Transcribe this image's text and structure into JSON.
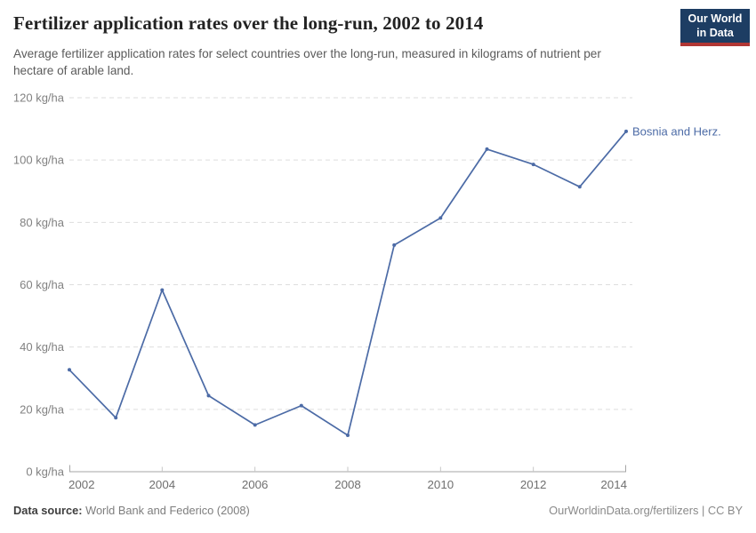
{
  "header": {
    "title": "Fertilizer application rates over the long-run, 2002 to 2014",
    "subtitle_lines": [
      "Average fertilizer application rates for select countries over the long-run, measured in kilograms of nutrient per",
      "hectare of arable land."
    ],
    "logo": {
      "line1": "Our World",
      "line2": "in Data"
    }
  },
  "chart_data": {
    "type": "line",
    "x": [
      2002,
      2003,
      2004,
      2005,
      2006,
      2007,
      2008,
      2009,
      2010,
      2011,
      2012,
      2013,
      2014
    ],
    "series": [
      {
        "name": "Bosnia and Herz.",
        "values": [
          32.7,
          17.3,
          58.3,
          24.4,
          15.0,
          21.2,
          11.7,
          72.7,
          81.4,
          103.5,
          98.6,
          91.4,
          109.2
        ],
        "color": "#4c6ba6"
      }
    ],
    "title": "Fertilizer application rates over the long-run, 2002 to 2014",
    "xlabel": "",
    "ylabel": "kg/ha",
    "unit": "kg/ha",
    "ylim": [
      0,
      120
    ],
    "yticks": [
      0,
      20,
      40,
      60,
      80,
      100,
      120
    ],
    "xticks": [
      2002,
      2004,
      2006,
      2008,
      2010,
      2012,
      2014
    ],
    "grid": "horizontal-dashed",
    "legend_position": "end-of-line-label"
  },
  "footer": {
    "source_label": "Data source:",
    "source_value": "World Bank and Federico (2008)",
    "credit": "OurWorldinData.org/fertilizers | CC BY"
  },
  "colors": {
    "series_blue": "#4c6ba6",
    "logo_bg": "#1d3d63",
    "logo_stripe": "#b13634",
    "grid": "#dddddd",
    "axis": "#a6a6a6",
    "tick": "#c6c6c6",
    "xtick_label": "#6f6f6f",
    "ytick_label": "#818181"
  }
}
